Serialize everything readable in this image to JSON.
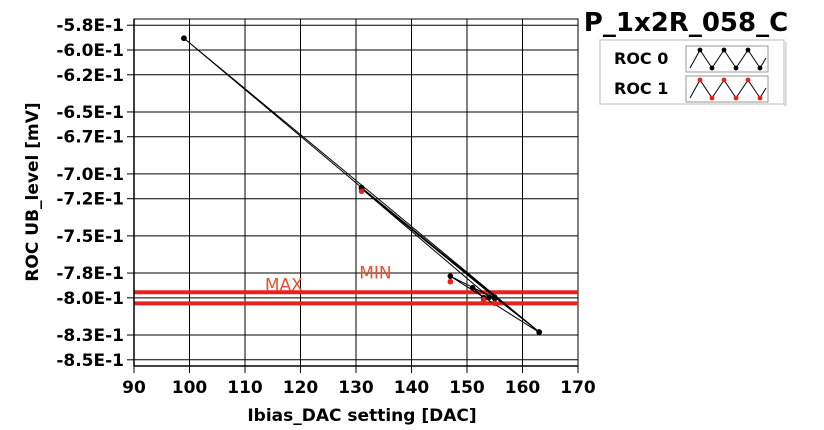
{
  "chart_data": {
    "type": "line",
    "title": "P_1x2R_058_C",
    "xlabel": "Ibias_DAC setting [DAC]",
    "ylabel": "ROC UB_level [mV]",
    "xlim": [
      90,
      170
    ],
    "ylim": [
      -0.855,
      -0.575
    ],
    "xticks": [
      90,
      100,
      110,
      120,
      130,
      140,
      150,
      160,
      170
    ],
    "xtick_labels": [
      "90",
      "100",
      "110",
      "120",
      "130",
      "140",
      "150",
      "160",
      "170"
    ],
    "yticks": [
      -0.58,
      -0.6,
      -0.62,
      -0.65,
      -0.67,
      -0.7,
      -0.72,
      -0.75,
      -0.78,
      -0.8,
      -0.83,
      -0.85
    ],
    "ytick_labels": [
      "-5.8E-1",
      "-6.0E-1",
      "-6.2E-1",
      "-6.5E-1",
      "-6.7E-1",
      "-7.0E-1",
      "-7.2E-1",
      "-7.5E-1",
      "-7.8E-1",
      "-8.0E-1",
      "-8.3E-1",
      "-8.5E-1"
    ],
    "grid": true,
    "legend_position": "top-right",
    "series": [
      {
        "name": "ROC 0",
        "color": "#000000",
        "x": [
          99,
          131,
          163,
          147,
          155,
          151,
          153,
          154,
          131,
          155,
          163,
          99
        ],
        "y": [
          -0.5905,
          -0.711,
          -0.8278,
          -0.7825,
          -0.8005,
          -0.7918,
          -0.7998,
          -0.7995,
          -0.712,
          -0.7995,
          -0.8275,
          -0.5905
        ]
      },
      {
        "name": "ROC 1",
        "color": "#e8201e",
        "x": [
          131,
          147,
          155,
          153
        ],
        "y": [
          -0.714,
          -0.787,
          -0.8045,
          -0.8015
        ]
      }
    ],
    "annotations": [
      {
        "text": "MAX",
        "x": 117,
        "y": -0.7955,
        "color": "#e8522e"
      },
      {
        "text": "MIN",
        "x": 133.5,
        "y": -0.786,
        "color": "#e8522e"
      }
    ],
    "reference_lines": [
      {
        "label": "MAX",
        "y": -0.7955,
        "color": "#e8201e"
      },
      {
        "label": "MIN",
        "y": -0.8045,
        "color": "#e8201e"
      }
    ]
  }
}
